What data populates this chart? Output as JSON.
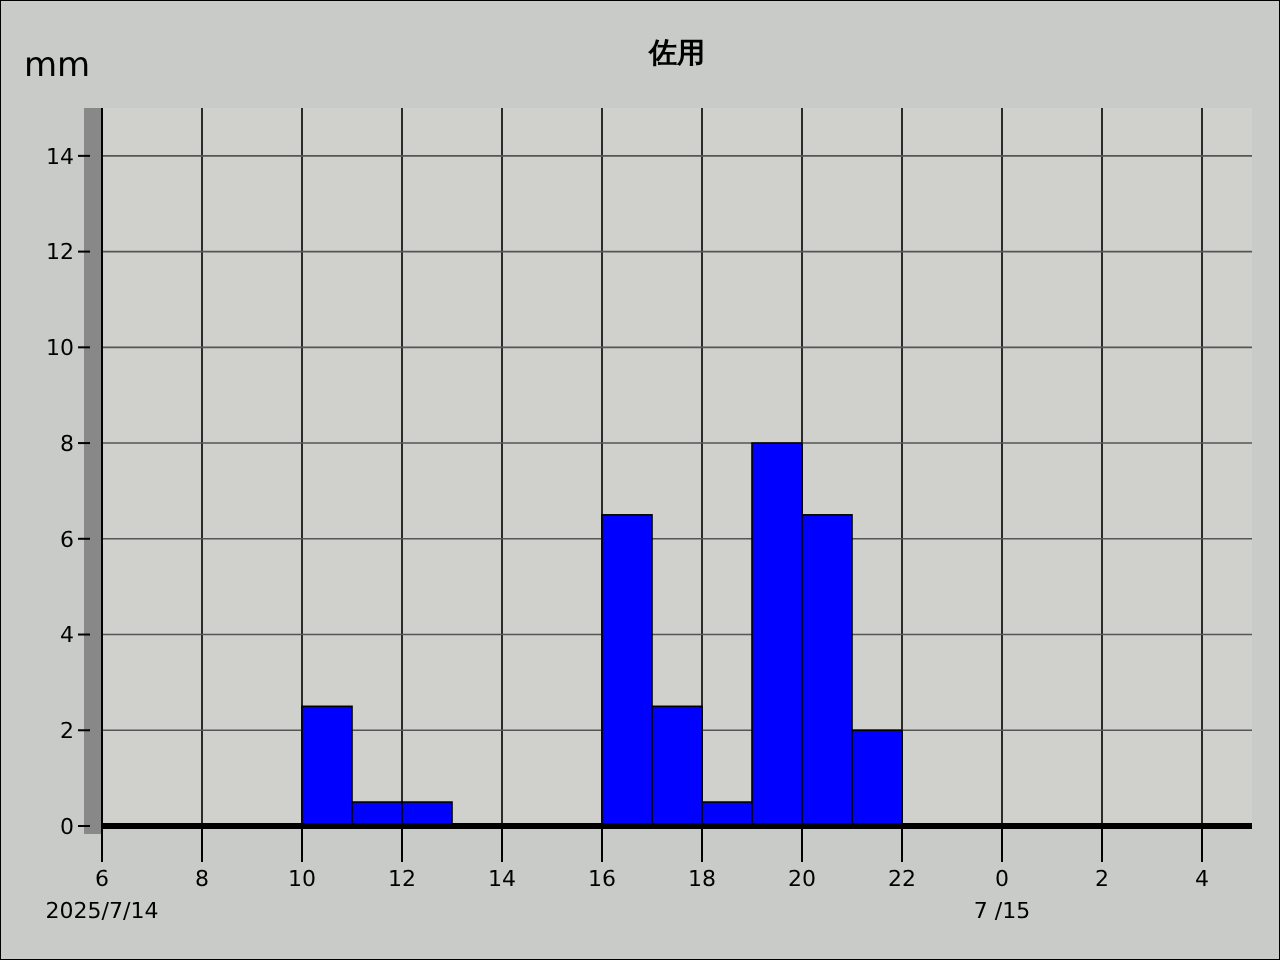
{
  "chart_data": {
    "type": "bar",
    "title": "佐用",
    "ylabel": "mm",
    "x": [
      "2025-07-14T06:30",
      "2025-07-14T07:30",
      "2025-07-14T08:30",
      "2025-07-14T09:30",
      "2025-07-14T10:30",
      "2025-07-14T11:30",
      "2025-07-14T12:30",
      "2025-07-14T13:30",
      "2025-07-14T14:30",
      "2025-07-14T15:30",
      "2025-07-14T16:30",
      "2025-07-14T17:30",
      "2025-07-14T18:30",
      "2025-07-14T19:30",
      "2025-07-14T20:30",
      "2025-07-14T21:30",
      "2025-07-14T22:30",
      "2025-07-14T23:30",
      "2025-07-15T00:30",
      "2025-07-15T01:30",
      "2025-07-15T02:30",
      "2025-07-15T03:30",
      "2025-07-15T04:30"
    ],
    "values": [
      0,
      0,
      0,
      0,
      2.5,
      0.5,
      0.5,
      0,
      0,
      0,
      6.5,
      2.5,
      0.5,
      8,
      6.5,
      2,
      0,
      0,
      0,
      0,
      0,
      0,
      0
    ],
    "color": "#0000ff",
    "xlim": [
      "2025-07-14T06:00",
      "2025-07-15T05:00"
    ],
    "xticks": [
      {
        "value": "2025-07-14T06:00",
        "label": "6\n2025/7/14"
      },
      {
        "value": "2025-07-14T08:00",
        "label": "8"
      },
      {
        "value": "2025-07-14T10:00",
        "label": "10"
      },
      {
        "value": "2025-07-14T12:00",
        "label": "12"
      },
      {
        "value": "2025-07-14T14:00",
        "label": "14"
      },
      {
        "value": "2025-07-14T16:00",
        "label": "16"
      },
      {
        "value": "2025-07-14T18:00",
        "label": "18"
      },
      {
        "value": "2025-07-14T20:00",
        "label": "20"
      },
      {
        "value": "2025-07-14T22:00",
        "label": "22"
      },
      {
        "value": "2025-07-15T00:00",
        "label": "0\n7 /15"
      },
      {
        "value": "2025-07-15T02:00",
        "label": "2"
      },
      {
        "value": "2025-07-15T04:00",
        "label": "4"
      }
    ],
    "ylim": [
      0,
      15
    ],
    "yticks": [
      0,
      2,
      4,
      6,
      8,
      10,
      12,
      14
    ],
    "grid": true
  }
}
